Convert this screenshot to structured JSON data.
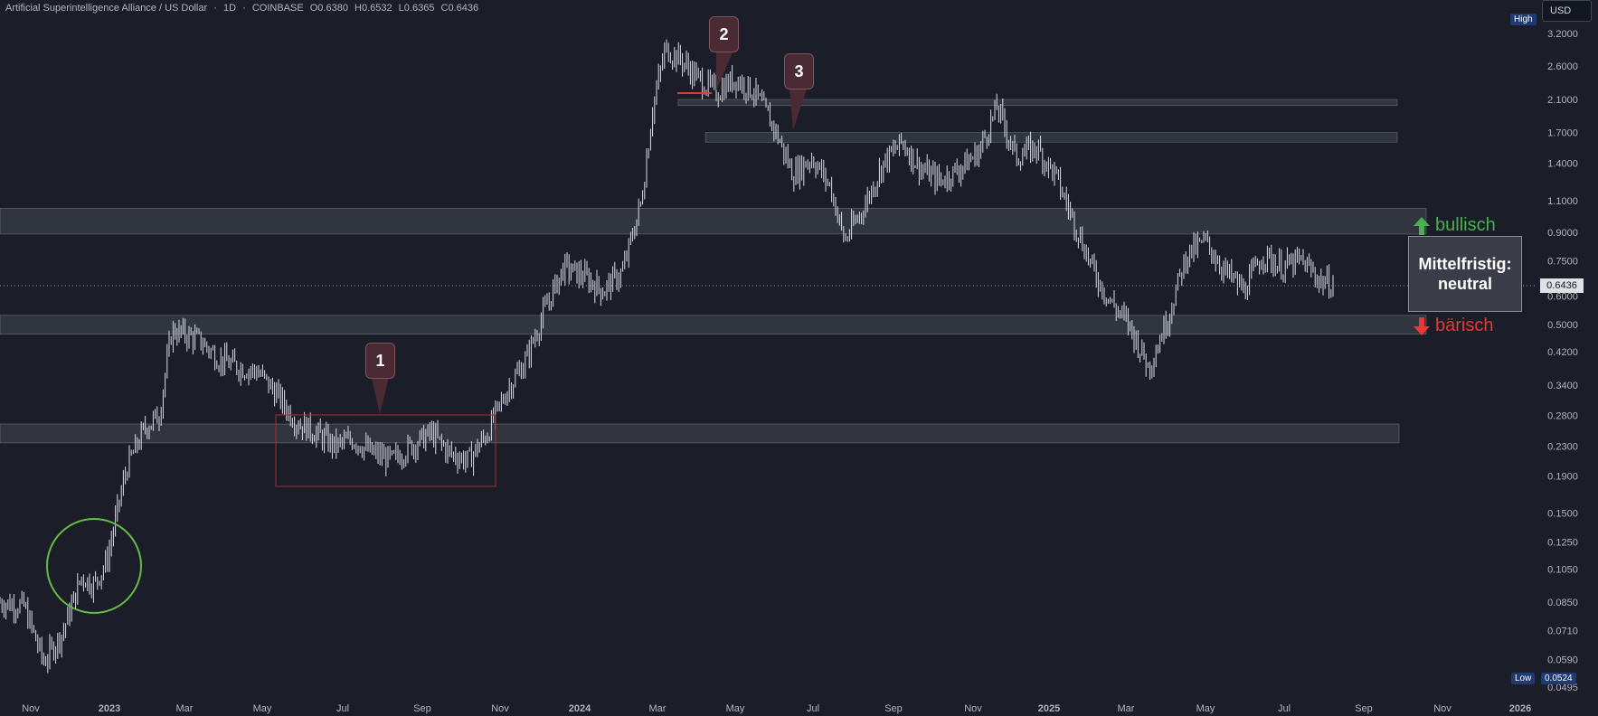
{
  "header": {
    "symbol": "Artificial Superintelligence Alliance / US Dollar",
    "interval": "1D",
    "exchange": "COINBASE",
    "open": "O0.6380",
    "high": "H0.6532",
    "low": "L0.6365",
    "close": "C0.6436"
  },
  "currency_button": "USD",
  "high_tag": "High",
  "low_tag": "Low",
  "low_value": "0.0524",
  "current_price": "0.6436",
  "annotations": {
    "bullish": "bullisch",
    "bearish": "bärisch",
    "neutral_line1": "Mittelfristig:",
    "neutral_line2": "neutral",
    "callouts": [
      "1",
      "2",
      "3"
    ]
  },
  "colors": {
    "background": "#1b1d29",
    "candle": "#e0e3eb",
    "zone": "#3a3d47",
    "bull": "#4caf50",
    "bear": "#e53935",
    "box_red": "#b22a2a",
    "circle_green": "#66bb44"
  },
  "chart_data": {
    "type": "line",
    "scale": "log",
    "ylim": [
      0.0495,
      3.2
    ],
    "y_ticks": [
      "3.2000",
      "2.6000",
      "2.1000",
      "1.7000",
      "1.4000",
      "1.1000",
      "0.9000",
      "0.7500",
      "0.6000",
      "0.5000",
      "0.4200",
      "0.3400",
      "0.2800",
      "0.2300",
      "0.1900",
      "0.1500",
      "0.1250",
      "0.1050",
      "0.0850",
      "0.0710",
      "0.0590",
      "0.0495"
    ],
    "x_ticks": [
      "Nov",
      "2023",
      "Mar",
      "May",
      "Jul",
      "Sep",
      "Nov",
      "2024",
      "Mar",
      "May",
      "Jul",
      "Sep",
      "Nov",
      "2025",
      "Mar",
      "May",
      "Jul",
      "Sep",
      "Nov",
      "2026"
    ],
    "x_labels_bold": [
      "2023",
      "2024",
      "2025",
      "2026"
    ],
    "series": [
      {
        "x": [
          "2022-10-01",
          "2022-10-20",
          "2022-11-05",
          "2022-11-20",
          "2022-12-05",
          "2022-12-15",
          "2022-12-25",
          "2023-01-10",
          "2023-01-25",
          "2023-02-05",
          "2023-02-15",
          "2023-02-25",
          "2023-03-10",
          "2023-03-25",
          "2023-04-10",
          "2023-04-25",
          "2023-05-10",
          "2023-05-25",
          "2023-06-10",
          "2023-06-25",
          "2023-07-10",
          "2023-07-25",
          "2023-08-10",
          "2023-08-25",
          "2023-09-10",
          "2023-09-25",
          "2023-10-10",
          "2023-10-25",
          "2023-11-10",
          "2023-11-25",
          "2023-12-10",
          "2023-12-25",
          "2024-01-10",
          "2024-01-25",
          "2024-02-10",
          "2024-02-25",
          "2024-03-05",
          "2024-03-15",
          "2024-03-28",
          "2024-04-10",
          "2024-04-25",
          "2024-05-10",
          "2024-05-25",
          "2024-06-10",
          "2024-06-25",
          "2024-07-10",
          "2024-07-25",
          "2024-08-05",
          "2024-08-20",
          "2024-09-05",
          "2024-09-20",
          "2024-10-05",
          "2024-10-20",
          "2024-11-05",
          "2024-11-20",
          "2024-12-05",
          "2024-12-20",
          "2025-01-05",
          "2025-01-20",
          "2025-02-05",
          "2025-02-20",
          "2025-03-05",
          "2025-03-20",
          "2025-04-05",
          "2025-04-20",
          "2025-05-05",
          "2025-05-20",
          "2025-06-05",
          "2025-06-20",
          "2025-07-05",
          "2025-07-20",
          "2025-08-05",
          "2025-08-20",
          "2025-08-31"
        ],
        "y": [
          0.085,
          0.083,
          0.058,
          0.07,
          0.1,
          0.095,
          0.11,
          0.2,
          0.26,
          0.28,
          0.48,
          0.47,
          0.45,
          0.4,
          0.38,
          0.37,
          0.32,
          0.27,
          0.25,
          0.23,
          0.24,
          0.22,
          0.21,
          0.23,
          0.25,
          0.22,
          0.21,
          0.25,
          0.33,
          0.4,
          0.55,
          0.72,
          0.68,
          0.62,
          0.7,
          1.1,
          2.0,
          2.9,
          2.7,
          2.4,
          2.2,
          2.4,
          2.2,
          1.75,
          1.3,
          1.45,
          1.2,
          0.85,
          1.05,
          1.4,
          1.6,
          1.35,
          1.25,
          1.35,
          1.5,
          2.0,
          1.45,
          1.55,
          1.3,
          0.95,
          0.7,
          0.58,
          0.5,
          0.38,
          0.52,
          0.78,
          0.85,
          0.7,
          0.62,
          0.78,
          0.72,
          0.75,
          0.66,
          0.6436
        ]
      }
    ],
    "zones": [
      [
        0.89,
        1.05
      ],
      [
        0.47,
        0.53
      ],
      [
        0.235,
        0.265
      ],
      [
        2.02,
        2.1
      ],
      [
        1.6,
        1.7
      ]
    ],
    "grid": false,
    "legend": "none"
  }
}
